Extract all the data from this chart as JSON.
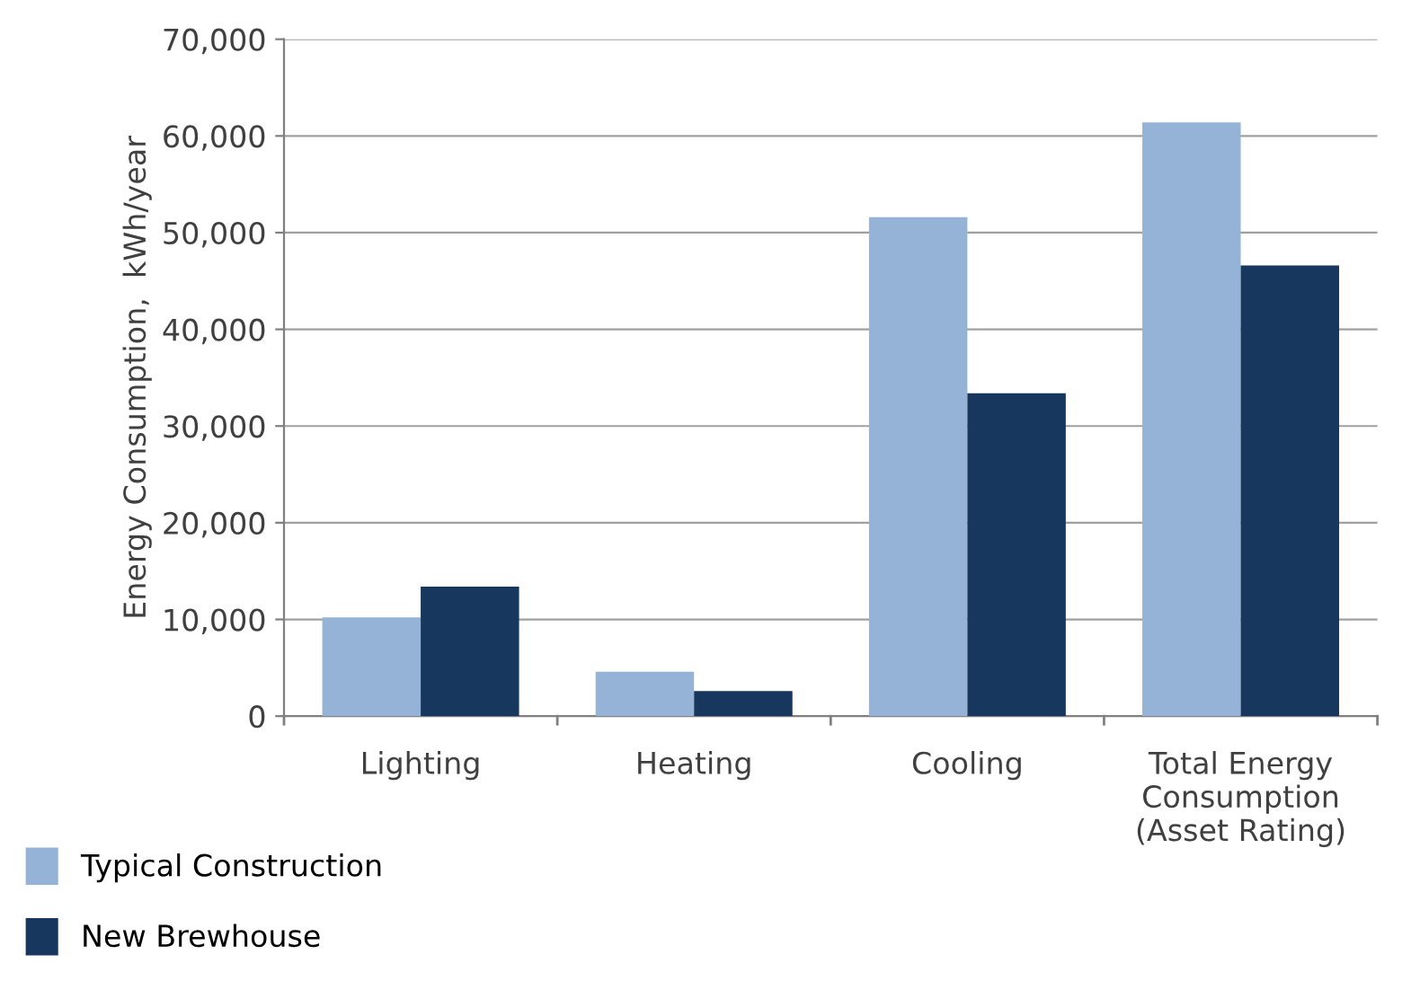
{
  "chart_data": {
    "type": "bar",
    "ylabel": "Energy Consumption,  kWh/year",
    "categories": [
      "Lighting",
      "Heating",
      "Cooling",
      "Total Energy\nConsumption\n(Asset Rating)"
    ],
    "series": [
      {
        "name": "Typical Construction",
        "color": "#95b3d7",
        "values": [
          10200,
          4600,
          51600,
          61400
        ]
      },
      {
        "name": "New Brewhouse",
        "color": "#17375e",
        "values": [
          13400,
          2600,
          33400,
          46600
        ]
      }
    ],
    "ylim": [
      0,
      70000
    ],
    "yticks": [
      {
        "value": 0,
        "label": "0"
      },
      {
        "value": 10000,
        "label": "10,000"
      },
      {
        "value": 20000,
        "label": "20,000"
      },
      {
        "value": 30000,
        "label": "30,000"
      },
      {
        "value": 40000,
        "label": "40,000"
      },
      {
        "value": 50000,
        "label": "50,000"
      },
      {
        "value": 60000,
        "label": "60,000"
      },
      {
        "value": 70000,
        "label": "70,000"
      }
    ],
    "grid": "y",
    "legend": "bottom left"
  }
}
